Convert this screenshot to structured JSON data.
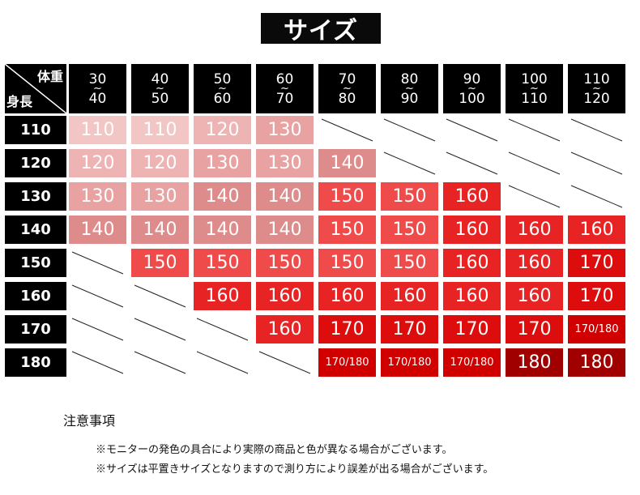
{
  "title": "サイズ",
  "header": {
    "weight_label": "体重",
    "height_label": "身長",
    "weights": [
      {
        "from": "30",
        "to": "40"
      },
      {
        "from": "40",
        "to": "50"
      },
      {
        "from": "50",
        "to": "60"
      },
      {
        "from": "60",
        "to": "70"
      },
      {
        "from": "70",
        "to": "80"
      },
      {
        "from": "80",
        "to": "90"
      },
      {
        "from": "90",
        "to": "100"
      },
      {
        "from": "100",
        "to": "110"
      },
      {
        "from": "110",
        "to": "120"
      }
    ],
    "tilde": "~"
  },
  "rows": [
    {
      "height": "110",
      "cells": [
        "110",
        "110",
        "120",
        "130",
        null,
        null,
        null,
        null,
        null
      ]
    },
    {
      "height": "120",
      "cells": [
        "120",
        "120",
        "130",
        "130",
        "140",
        null,
        null,
        null,
        null
      ]
    },
    {
      "height": "130",
      "cells": [
        "130",
        "130",
        "140",
        "140",
        "150",
        "150",
        "160",
        null,
        null
      ]
    },
    {
      "height": "140",
      "cells": [
        "140",
        "140",
        "140",
        "140",
        "150",
        "150",
        "160",
        "160",
        "160"
      ]
    },
    {
      "height": "150",
      "cells": [
        null,
        "150",
        "150",
        "150",
        "150",
        "150",
        "160",
        "160",
        "170"
      ]
    },
    {
      "height": "160",
      "cells": [
        null,
        null,
        "160",
        "160",
        "160",
        "160",
        "160",
        "160",
        "170"
      ]
    },
    {
      "height": "170",
      "cells": [
        null,
        null,
        null,
        "160",
        "170",
        "170",
        "170",
        "170",
        "170/180"
      ]
    },
    {
      "height": "180",
      "cells": [
        null,
        null,
        null,
        null,
        "170/180",
        "170/180",
        "170/180",
        "180",
        "180"
      ]
    }
  ],
  "colors": {
    "110": "#f3c6c6",
    "120": "#eeb3b3",
    "130": "#e9a2a2",
    "140": "#dd8b8b",
    "150": "#ef4b4b",
    "160": "#e72323",
    "170": "#de0d0d",
    "170/180": "#d10000",
    "180": "#a00000"
  },
  "notes": {
    "title": "注意事項",
    "lines": [
      "※モニターの発色の具合により実際の商品と色が異なる場合がございます。",
      "※サイズは平置きサイズとなりますので測り方により誤差が出る場合がございます。"
    ]
  }
}
